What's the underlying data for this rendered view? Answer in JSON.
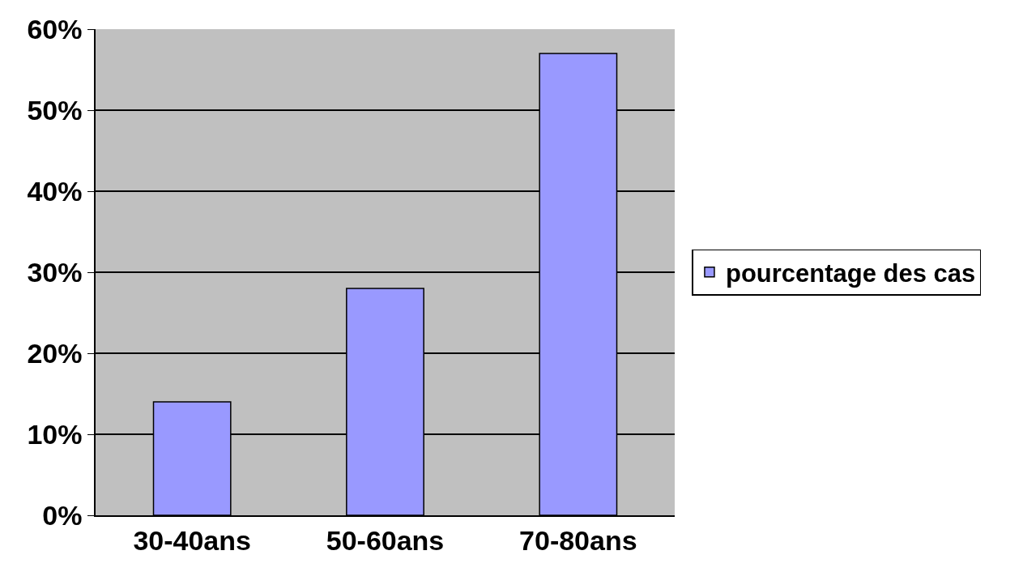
{
  "chart_data": {
    "type": "bar",
    "categories": [
      "30-40ans",
      "50-60ans",
      "70-80ans"
    ],
    "series": [
      {
        "name": "pourcentage des cas",
        "color": "#9999ff",
        "values": [
          14,
          28,
          57
        ]
      }
    ],
    "ylim": [
      0,
      60
    ],
    "yticks": [
      {
        "value": 0,
        "label": "0%"
      },
      {
        "value": 10,
        "label": "10%"
      },
      {
        "value": 20,
        "label": "20%"
      },
      {
        "value": 30,
        "label": "30%"
      },
      {
        "value": 40,
        "label": "40%"
      },
      {
        "value": 50,
        "label": "50%"
      },
      {
        "value": 60,
        "label": "60%"
      }
    ],
    "grid": "y",
    "legend": "right"
  }
}
